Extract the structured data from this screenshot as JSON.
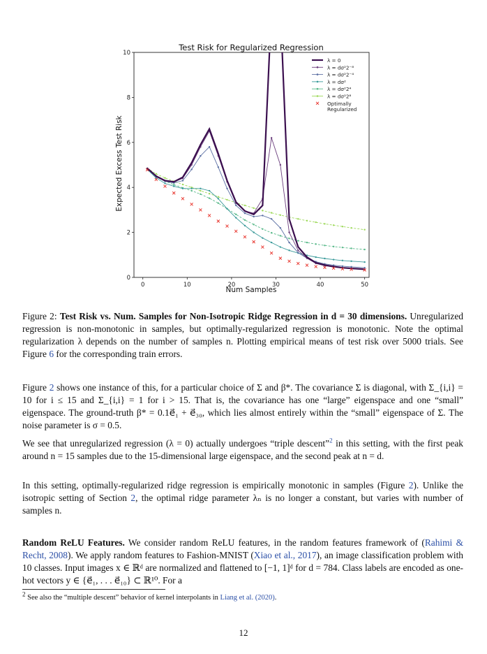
{
  "figure": {
    "chart_data": {
      "type": "line",
      "title": "Test Risk for Regularized Regression",
      "xlabel": "Num Samples",
      "ylabel": "Expected Excess Test Risk",
      "xlim": [
        -2,
        51
      ],
      "ylim": [
        0,
        10
      ],
      "xticks": [
        "0",
        "10",
        "20",
        "30",
        "40",
        "50"
      ],
      "yticks": [
        "0",
        "2",
        "4",
        "6",
        "8",
        "10"
      ],
      "x": [
        1,
        3,
        5,
        7,
        9,
        11,
        13,
        15,
        17,
        19,
        21,
        23,
        25,
        27,
        29,
        31,
        33,
        35,
        37,
        39,
        41,
        43,
        45,
        47,
        50
      ],
      "legend_position": "top-right",
      "series": [
        {
          "name": "λ = 0",
          "color": "#3b0f4f",
          "marker": "none",
          "values": [
            4.85,
            4.5,
            4.3,
            4.25,
            4.45,
            5.1,
            5.9,
            6.6,
            5.5,
            4.3,
            3.35,
            2.95,
            2.8,
            3.2,
            12,
            12,
            2.6,
            1.35,
            0.9,
            0.65,
            0.55,
            0.48,
            0.43,
            0.4,
            0.36
          ]
        },
        {
          "name": "λ = dσ²2⁻⁸",
          "color": "#6a3d7c",
          "marker": "dot",
          "values": [
            4.85,
            4.5,
            4.3,
            4.25,
            4.4,
            5.0,
            5.8,
            6.5,
            5.4,
            4.25,
            3.3,
            2.95,
            2.85,
            3.5,
            6.2,
            5.0,
            2.0,
            1.2,
            0.85,
            0.62,
            0.52,
            0.46,
            0.42,
            0.39,
            0.35
          ]
        },
        {
          "name": "λ = dσ²2⁻⁴",
          "color": "#5b6fa3",
          "marker": "dot",
          "values": [
            4.83,
            4.47,
            4.27,
            4.2,
            4.3,
            4.8,
            5.4,
            5.8,
            4.9,
            3.95,
            3.2,
            2.85,
            2.7,
            2.75,
            2.6,
            2.2,
            1.55,
            1.1,
            0.85,
            0.7,
            0.6,
            0.54,
            0.5,
            0.47,
            0.43
          ]
        },
        {
          "name": "λ = dσ²",
          "color": "#3a9a9a",
          "marker": "dot",
          "values": [
            4.8,
            4.42,
            4.18,
            4.05,
            3.95,
            3.95,
            3.95,
            3.85,
            3.5,
            3.05,
            2.65,
            2.3,
            2.0,
            1.75,
            1.55,
            1.35,
            1.2,
            1.08,
            0.98,
            0.9,
            0.84,
            0.79,
            0.75,
            0.72,
            0.68
          ]
        },
        {
          "name": "λ = dσ²2⁴",
          "color": "#59b98a",
          "marker": "dot",
          "values": [
            4.82,
            4.5,
            4.28,
            4.12,
            3.98,
            3.85,
            3.7,
            3.52,
            3.3,
            3.05,
            2.8,
            2.55,
            2.35,
            2.15,
            1.98,
            1.85,
            1.73,
            1.63,
            1.55,
            1.48,
            1.42,
            1.37,
            1.33,
            1.29,
            1.24
          ]
        },
        {
          "name": "λ = dσ²2⁸",
          "color": "#9ed95a",
          "marker": "dot",
          "values": [
            4.85,
            4.6,
            4.42,
            4.27,
            4.13,
            4.0,
            3.85,
            3.72,
            3.58,
            3.45,
            3.32,
            3.2,
            3.08,
            2.97,
            2.87,
            2.77,
            2.68,
            2.6,
            2.52,
            2.45,
            2.38,
            2.32,
            2.26,
            2.2,
            2.12
          ]
        },
        {
          "name": "Optimally Regularized",
          "color": "#e8322a",
          "marker": "x",
          "values": [
            4.78,
            4.35,
            4.05,
            3.75,
            3.5,
            3.25,
            3.0,
            2.75,
            2.5,
            2.28,
            2.05,
            1.8,
            1.58,
            1.35,
            1.08,
            0.85,
            0.72,
            0.62,
            0.54,
            0.48,
            0.44,
            0.41,
            0.38,
            0.36,
            0.33
          ]
        }
      ]
    }
  },
  "caption": {
    "label": "Figure 2:",
    "bold": "Test Risk vs. Num. Samples for Non-Isotropic Ridge Regression in d = 30 dimensions.",
    "text": "Unregularized regression is non-monotonic in samples, but optimally-regularized regression is monotonic. Note the optimal regularization λ depends on the number of samples n. Plotting empirical means of test risk over 5000 trials. See Figure",
    "link": "6",
    "text_end": "for the corresponding train errors."
  },
  "paragraphs": {
    "p1_a": "Figure",
    "p1_link": "2",
    "p1_b": "shows one instance of this, for a particular choice of Σ and β*. The covariance Σ is diagonal, with Σ_{i,i} = 10 for i ≤ 15 and Σ_{i,i} = 1 for i > 15. That is, the covariance has one “large” eigenspace and one “small” eigenspace. The ground-truth β* = 0.1e⃗₁ + e⃗₃₀, which lies almost entirely within the “small” eigenspace of Σ. The noise parameter is σ = 0.5.",
    "p2_a": "We see that unregularized regression (λ = 0) actually undergoes “triple descent”",
    "p2_fn": "2",
    "p2_b": "in this setting, with the first peak around n = 15 samples due to the 15-dimensional large eigenspace, and the second peak at n = d.",
    "p3_a": "In this setting, optimally-regularized ridge regression is empirically monotonic in samples (Figure",
    "p3_link1": "2",
    "p3_b": "). Unlike the isotropic setting of Section",
    "p3_link2": "2",
    "p3_c": ", the optimal ridge parameter λₙ is no longer a constant, but varies with number of samples n.",
    "p4_head": "Random ReLU Features.",
    "p4_a": "We consider random ReLU features, in the random features framework of (",
    "p4_cite1": "Rahimi & Recht, 2008",
    "p4_b": "). We apply random features to Fashion-MNIST (",
    "p4_cite2": "Xiao et al., 2017",
    "p4_c": "), an image classification problem with 10 classes. Input images x ∈ ℝᵈ are normalized and flattened to [−1, 1]ᵈ for d = 784. Class labels are encoded as one-hot vectors y ∈ {e⃗₁, . . . e⃗₁₀} ⊂ ℝ¹⁰. For a"
  },
  "footnote": {
    "mark": "2",
    "text": "See also the “multiple descent” behavior of kernel interpolants in",
    "cite": "Liang et al. (2020)",
    "end": "."
  },
  "page_number": "12"
}
